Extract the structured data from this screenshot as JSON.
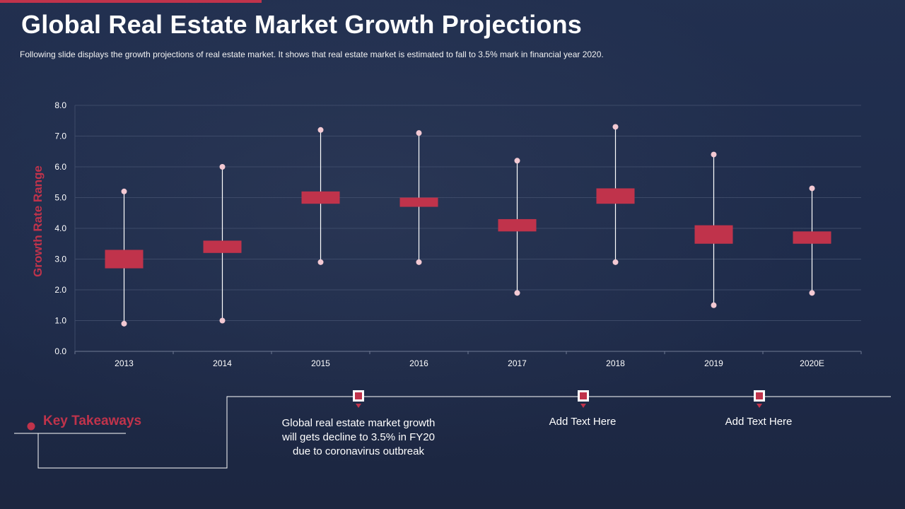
{
  "slide": {
    "title": "Global Real Estate Market Growth Projections",
    "subtitle": "Following slide displays the growth  projections  of real estate market. It shows that real estate market is estimated to fall to 3.5% mark in financial  year 2020."
  },
  "colors": {
    "accent": "#c0334b",
    "whisker_dot": "#f3c9d3",
    "background": "#1e2b4a"
  },
  "chart_data": {
    "type": "box",
    "ylabel": "Growth Rate Range",
    "ylim": [
      0,
      8
    ],
    "yticks": [
      "0.0",
      "1.0",
      "2.0",
      "3.0",
      "4.0",
      "5.0",
      "6.0",
      "7.0",
      "8.0"
    ],
    "categories": [
      "2013",
      "2014",
      "2015",
      "2016",
      "2017",
      "2018",
      "2019",
      "2020E"
    ],
    "series": [
      {
        "name": "low",
        "values": [
          0.9,
          1.0,
          2.9,
          2.9,
          1.9,
          2.9,
          1.5,
          1.9
        ]
      },
      {
        "name": "box_low",
        "values": [
          2.7,
          3.2,
          4.8,
          4.7,
          3.9,
          4.8,
          3.5,
          3.5
        ]
      },
      {
        "name": "box_high",
        "values": [
          3.3,
          3.6,
          5.2,
          5.0,
          4.3,
          5.3,
          4.1,
          3.9
        ]
      },
      {
        "name": "high",
        "values": [
          5.2,
          6.0,
          7.2,
          7.1,
          6.2,
          7.3,
          6.4,
          5.3
        ]
      }
    ]
  },
  "takeaways": {
    "title": "Key Takeaways",
    "items": [
      "Global real estate market growth will gets decline to 3.5% in FY20 due to coronavirus outbreak",
      "Add Text Here",
      "Add Text Here"
    ]
  }
}
